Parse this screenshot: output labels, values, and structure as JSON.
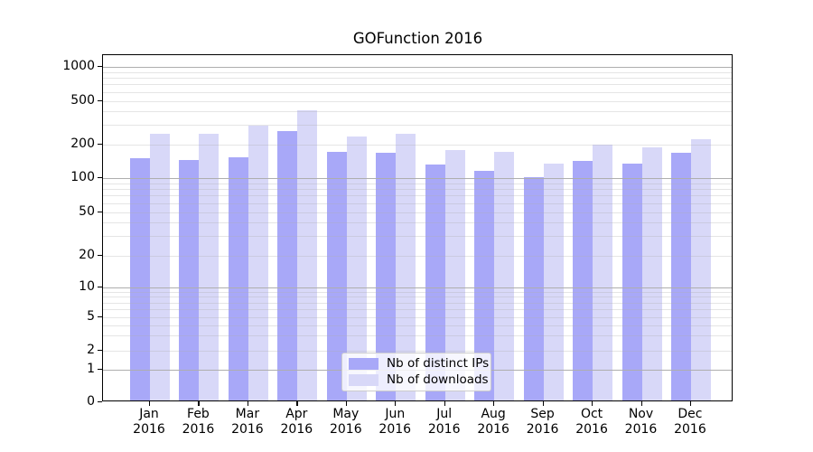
{
  "chart_data": {
    "type": "bar",
    "title": "GOFunction 2016",
    "xlabel": "",
    "ylabel": "",
    "yscale": "symlog",
    "grid": true,
    "legend_position": "lower-center",
    "categories": [
      "Jan",
      "Feb",
      "Mar",
      "Apr",
      "May",
      "Jun",
      "Jul",
      "Aug",
      "Sep",
      "Oct",
      "Nov",
      "Dec"
    ],
    "category_year_line": "2016",
    "series": [
      {
        "name": "Nb of distinct IPs",
        "color": "#a8a8f8",
        "values": [
          145,
          142,
          150,
          255,
          165,
          162,
          129,
          113,
          100,
          137,
          130,
          162
        ]
      },
      {
        "name": "Nb of downloads",
        "color": "#d8d8f8",
        "values": [
          243,
          244,
          285,
          396,
          228,
          240,
          174,
          167,
          130,
          192,
          184,
          218
        ]
      }
    ],
    "y_axis": {
      "tick_labels": [
        "1000",
        "500",
        "200",
        "100",
        "50",
        "20",
        "10",
        "5",
        "2",
        "1",
        "0"
      ],
      "tick_values": [
        1000,
        500,
        200,
        100,
        50,
        20,
        10,
        5,
        2,
        1,
        0
      ],
      "ylim": [
        0,
        1400
      ]
    },
    "colors": {
      "grid_major": "#aeaeae",
      "grid_minor": "#d9d9d9",
      "spine": "#000000",
      "legend_border": "#cccccc"
    }
  }
}
